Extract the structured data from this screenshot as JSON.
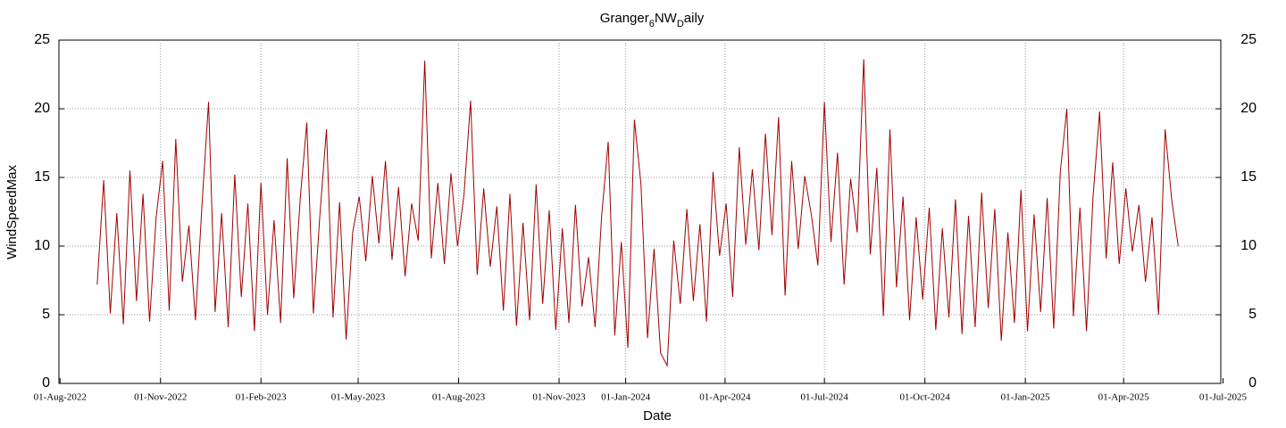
{
  "chart_data": {
    "type": "line",
    "title": [
      "Granger",
      "6",
      "NW",
      "D",
      "aily"
    ],
    "x_label": "Date",
    "y_label": "WindSpeedMax",
    "grid": true,
    "xlim": [
      "2022-07-31",
      "2025-06-29"
    ],
    "xticks": [
      {
        "value": "2022-08-01",
        "label": "01-Aug-2022"
      },
      {
        "value": "2022-11-01",
        "label": "01-Nov-2022"
      },
      {
        "value": "2023-02-01",
        "label": "01-Feb-2023"
      },
      {
        "value": "2023-05-01",
        "label": "01-May-2023"
      },
      {
        "value": "2023-08-01",
        "label": "01-Aug-2023"
      },
      {
        "value": "2023-11-01",
        "label": "01-Nov-2023"
      },
      {
        "value": "2024-01-01",
        "label": "01-Jan-2024"
      },
      {
        "value": "2024-04-01",
        "label": "01-Apr-2024"
      },
      {
        "value": "2024-07-01",
        "label": "01-Jul-2024"
      },
      {
        "value": "2024-10-01",
        "label": "01-Oct-2024"
      },
      {
        "value": "2025-01-01",
        "label": "01-Jan-2025"
      },
      {
        "value": "2025-04-01",
        "label": "01-Apr-2025"
      },
      {
        "value": "2025-07-01",
        "label": "01-Jul-2025"
      }
    ],
    "ylim": [
      0,
      25
    ],
    "yticks": [
      0,
      5,
      10,
      15,
      20,
      25
    ],
    "x": [
      "2022-09-04",
      "2022-09-10",
      "2022-09-16",
      "2022-09-22",
      "2022-09-28",
      "2022-10-04",
      "2022-10-10",
      "2022-10-16",
      "2022-10-22",
      "2022-10-28",
      "2022-11-03",
      "2022-11-09",
      "2022-11-15",
      "2022-11-21",
      "2022-11-27",
      "2022-12-03",
      "2022-12-09",
      "2022-12-15",
      "2022-12-21",
      "2022-12-27",
      "2023-01-02",
      "2023-01-08",
      "2023-01-14",
      "2023-01-20",
      "2023-01-26",
      "2023-02-01",
      "2023-02-07",
      "2023-02-13",
      "2023-02-19",
      "2023-02-25",
      "2023-03-03",
      "2023-03-09",
      "2023-03-15",
      "2023-03-21",
      "2023-03-27",
      "2023-04-02",
      "2023-04-08",
      "2023-04-14",
      "2023-04-20",
      "2023-04-26",
      "2023-05-02",
      "2023-05-08",
      "2023-05-14",
      "2023-05-20",
      "2023-05-26",
      "2023-06-01",
      "2023-06-07",
      "2023-06-13",
      "2023-06-19",
      "2023-06-25",
      "2023-07-01",
      "2023-07-07",
      "2023-07-13",
      "2023-07-19",
      "2023-07-25",
      "2023-07-31",
      "2023-08-06",
      "2023-08-12",
      "2023-08-18",
      "2023-08-24",
      "2023-08-30",
      "2023-09-05",
      "2023-09-11",
      "2023-09-17",
      "2023-09-23",
      "2023-09-29",
      "2023-10-05",
      "2023-10-11",
      "2023-10-17",
      "2023-10-23",
      "2023-10-29",
      "2023-11-04",
      "2023-11-10",
      "2023-11-16",
      "2023-11-22",
      "2023-11-28",
      "2023-12-04",
      "2023-12-10",
      "2023-12-16",
      "2023-12-22",
      "2023-12-28",
      "2024-01-03",
      "2024-01-09",
      "2024-01-15",
      "2024-01-21",
      "2024-01-27",
      "2024-02-02",
      "2024-02-08",
      "2024-02-14",
      "2024-02-20",
      "2024-02-26",
      "2024-03-03",
      "2024-03-09",
      "2024-03-15",
      "2024-03-21",
      "2024-03-27",
      "2024-04-02",
      "2024-04-08",
      "2024-04-14",
      "2024-04-20",
      "2024-04-26",
      "2024-05-02",
      "2024-05-08",
      "2024-05-14",
      "2024-05-20",
      "2024-05-26",
      "2024-06-01",
      "2024-06-07",
      "2024-06-13",
      "2024-06-19",
      "2024-06-25",
      "2024-07-01",
      "2024-07-07",
      "2024-07-13",
      "2024-07-19",
      "2024-07-25",
      "2024-07-31",
      "2024-08-06",
      "2024-08-12",
      "2024-08-18",
      "2024-08-24",
      "2024-08-30",
      "2024-09-05",
      "2024-09-11",
      "2024-09-17",
      "2024-09-23",
      "2024-09-29",
      "2024-10-05",
      "2024-10-11",
      "2024-10-17",
      "2024-10-23",
      "2024-10-29",
      "2024-11-04",
      "2024-11-10",
      "2024-11-16",
      "2024-11-22",
      "2024-11-28",
      "2024-12-04",
      "2024-12-10",
      "2024-12-16",
      "2024-12-22",
      "2024-12-28",
      "2025-01-03",
      "2025-01-09",
      "2025-01-15",
      "2025-01-21",
      "2025-01-27",
      "2025-02-02",
      "2025-02-08",
      "2025-02-14",
      "2025-02-20",
      "2025-02-26",
      "2025-03-04",
      "2025-03-10",
      "2025-03-16",
      "2025-03-22",
      "2025-03-28",
      "2025-04-03",
      "2025-04-09",
      "2025-04-15",
      "2025-04-21",
      "2025-04-27",
      "2025-05-03",
      "2025-05-09",
      "2025-05-15",
      "2025-05-21"
    ],
    "series": [
      {
        "name": "WindSpeedMax",
        "color": "#a00000",
        "values": [
          7.2,
          14.8,
          5.1,
          12.4,
          4.3,
          15.5,
          6.0,
          13.8,
          4.5,
          12.1,
          16.2,
          5.3,
          17.8,
          7.4,
          11.5,
          4.6,
          13.0,
          20.5,
          5.2,
          12.4,
          4.1,
          15.2,
          6.3,
          13.1,
          3.8,
          14.6,
          5.0,
          11.9,
          4.4,
          16.4,
          6.2,
          13.5,
          19.0,
          5.1,
          12.3,
          18.5,
          4.8,
          13.2,
          3.2,
          11.0,
          13.6,
          8.9,
          15.1,
          10.2,
          16.2,
          9.0,
          14.3,
          7.8,
          13.1,
          10.4,
          23.5,
          9.1,
          14.6,
          8.7,
          15.3,
          10.0,
          13.8,
          20.6,
          7.9,
          14.2,
          8.5,
          12.9,
          5.3,
          13.8,
          4.2,
          11.7,
          4.6,
          14.5,
          5.8,
          12.6,
          3.9,
          11.3,
          4.4,
          13.0,
          5.6,
          9.2,
          4.1,
          12.2,
          17.6,
          3.5,
          10.3,
          2.6,
          19.2,
          14.5,
          3.3,
          9.8,
          2.2,
          1.3,
          10.4,
          5.8,
          12.7,
          6.0,
          11.6,
          4.5,
          15.4,
          9.3,
          13.1,
          6.3,
          17.2,
          10.1,
          15.6,
          9.7,
          18.2,
          10.8,
          19.4,
          6.4,
          16.2,
          9.8,
          15.1,
          12.3,
          8.6,
          20.5,
          10.3,
          16.8,
          7.2,
          14.9,
          11.0,
          23.6,
          9.4,
          15.7,
          4.9,
          18.5,
          7.0,
          13.6,
          4.6,
          12.1,
          6.1,
          12.8,
          3.9,
          11.3,
          4.8,
          13.4,
          3.6,
          12.2,
          4.1,
          13.9,
          5.5,
          12.7,
          3.1,
          11.0,
          4.4,
          14.1,
          3.8,
          12.3,
          5.2,
          13.5,
          4.0,
          15.4,
          20.0,
          4.9,
          12.8,
          3.8,
          13.6,
          19.8,
          9.1,
          16.1,
          8.7,
          14.2,
          9.6,
          13.0,
          7.4,
          12.1,
          5.0,
          18.5,
          13.4,
          10.0
        ]
      }
    ]
  }
}
